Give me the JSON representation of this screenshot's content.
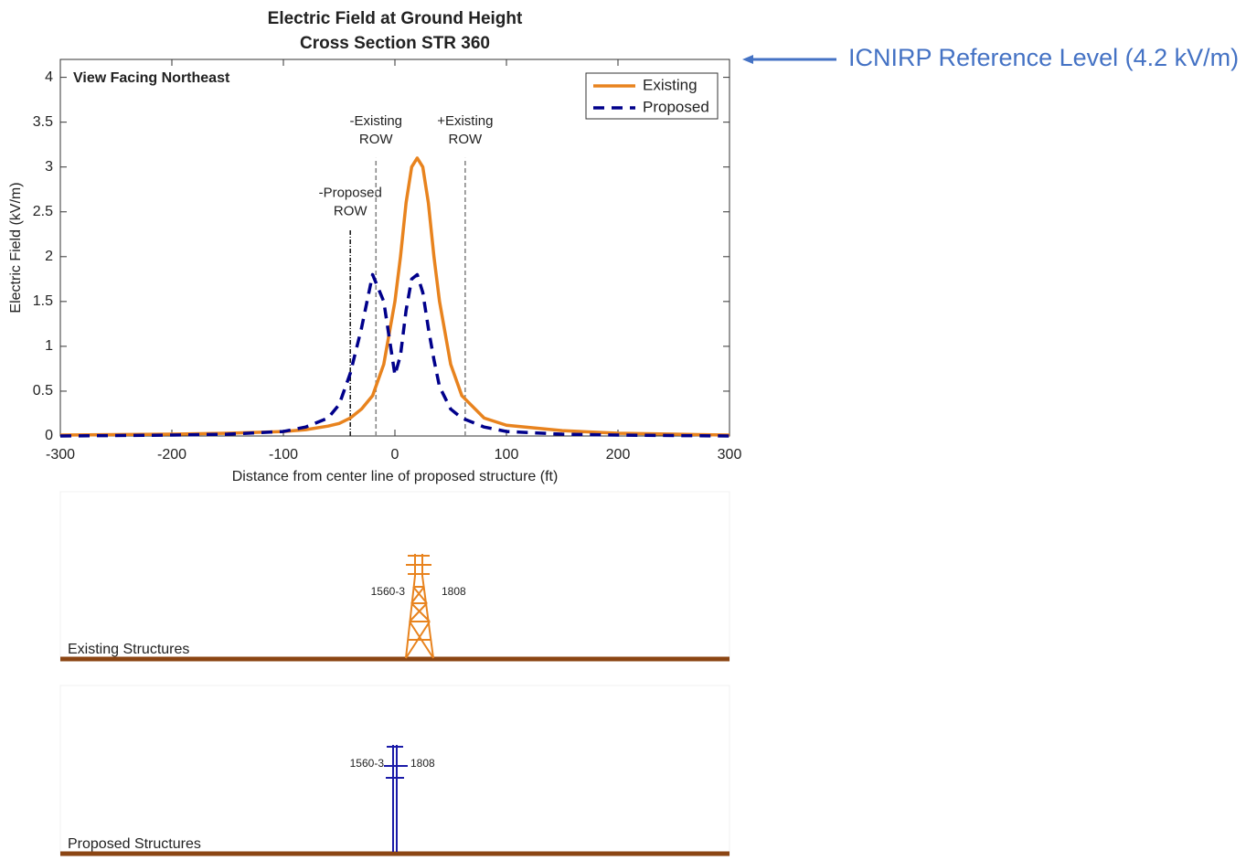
{
  "chart_data": {
    "type": "line",
    "title": "Electric Field at Ground Height",
    "subtitle": "Cross Section STR 360",
    "xlabel": "Distance from center line of proposed structure (ft)",
    "ylabel": "Electric Field (kV/m)",
    "annotation": "View Facing Northeast",
    "reference_note": "ICNIRP Reference Level (4.2 kV/m)",
    "legend_position": "upper right",
    "x": [
      -300,
      -250,
      -200,
      -150,
      -100,
      -80,
      -60,
      -50,
      -40,
      -30,
      -20,
      -10,
      0,
      5,
      10,
      15,
      20,
      25,
      30,
      35,
      40,
      50,
      60,
      80,
      100,
      150,
      200,
      250,
      300
    ],
    "series": [
      {
        "name": "Existing",
        "color": "#e8831e",
        "dash": "solid",
        "values": [
          0.01,
          0.015,
          0.02,
          0.03,
          0.05,
          0.07,
          0.11,
          0.14,
          0.2,
          0.3,
          0.45,
          0.8,
          1.5,
          2.0,
          2.6,
          3.0,
          3.1,
          3.0,
          2.6,
          2.0,
          1.5,
          0.8,
          0.45,
          0.2,
          0.12,
          0.06,
          0.03,
          0.02,
          0.01
        ]
      },
      {
        "name": "Proposed",
        "color": "#00008b",
        "dash": "dashed",
        "values": [
          0,
          0.005,
          0.01,
          0.02,
          0.05,
          0.1,
          0.2,
          0.35,
          0.7,
          1.2,
          1.8,
          1.5,
          0.68,
          0.9,
          1.4,
          1.75,
          1.8,
          1.6,
          1.2,
          0.85,
          0.55,
          0.3,
          0.2,
          0.1,
          0.05,
          0.02,
          0.01,
          0.005,
          0
        ]
      }
    ],
    "vlines": [
      {
        "label": [
          "-Proposed",
          "ROW"
        ],
        "x": -40,
        "top": 2.3,
        "color": "#222222"
      },
      {
        "label": [
          "-Existing",
          "ROW"
        ],
        "x": -17,
        "top": 3.1,
        "color": "#888888"
      },
      {
        "label": [
          "+Existing",
          "ROW"
        ],
        "x": 63,
        "top": 3.1,
        "color": "#888888"
      }
    ],
    "xlim": [
      -300,
      300
    ],
    "xticks": [
      -300,
      -200,
      -100,
      0,
      100,
      200,
      300
    ],
    "ylim": [
      0,
      4.2
    ],
    "yticks": [
      0,
      0.5,
      1,
      1.5,
      2,
      2.5,
      3,
      3.5,
      4
    ]
  },
  "structures": {
    "existing": {
      "label": "Existing Structures",
      "left": "1560-3",
      "right": "1808"
    },
    "proposed": {
      "label": "Proposed Structures",
      "left": "1560-3",
      "right": "1808"
    }
  }
}
